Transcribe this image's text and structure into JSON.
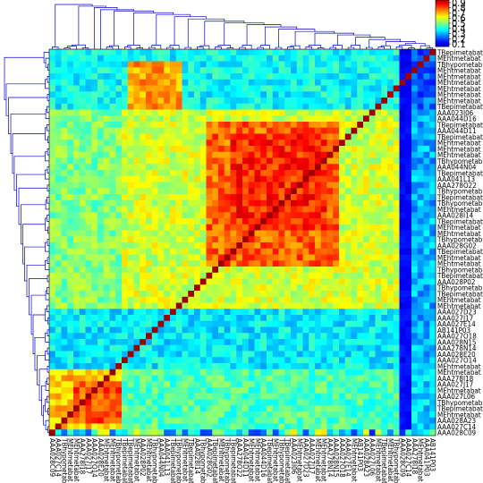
{
  "chart_data": {
    "type": "heatmap",
    "title": "",
    "xlabel": "",
    "ylabel": "",
    "colormap": [
      "#00008f",
      "#0000ff",
      "#0080ff",
      "#00ffff",
      "#80ff80",
      "#ffff00",
      "#ff8000",
      "#ff0000",
      "#800000"
    ],
    "dendrogram_color": "#0000cc",
    "colorbar": {
      "ticks": [
        0.1,
        0.2,
        0.3,
        0.4,
        0.5,
        0.6,
        0.7,
        0.8,
        0.9
      ],
      "range": [
        0.05,
        0.95
      ]
    },
    "row_labels": [
      "TBepimetabat",
      "MEhtmetabat",
      "TBhypometab",
      "MEhtmetabat",
      "MEhtmetabat",
      "MEhtmetabat",
      "MEhtmetabat",
      "MEhtmetabat",
      "MEhtmetabat",
      "TBepimetabat",
      "AAA023I06",
      "AAA044D16",
      "TBepimetabat",
      "AAA044D11",
      "TBepimetabat",
      "MEhtmetabat",
      "MEhtmetabat",
      "MEhtmetabat",
      "TBhypometab",
      "AAA044N04",
      "TBepimetabat",
      "AAA041L13",
      "AAA278O22",
      "TBhypometab",
      "TBepimetabat",
      "TBhypometab",
      "MEhtmetabat",
      "AAA028I14",
      "TBepimetabat",
      "MEhtmetabat",
      "MEhtmetabat",
      "TBhypometab",
      "AAA028G02",
      "TBepimetabat",
      "MEhtmetabat",
      "MEhtmetabat",
      "TBhypometab",
      "TBepimetabat",
      "AAA028P02",
      "TBhypometab",
      "TBepimetabat",
      "MEhtmetabat",
      "MEhtmetabat",
      "AAA027D23",
      "AAA027J17",
      "AAA027E14",
      "AB141P03",
      "AAA027O18",
      "AAA028N15",
      "AAA278N14",
      "AAA028E20",
      "AAA027O14",
      "MEhtmetabat",
      "MEhtmetabat",
      "AAA278I18",
      "AAA027J17",
      "MEhtmetabat",
      "AAA027L06",
      "TBhypometab",
      "TBepimetabat",
      "MEhtmetabat",
      "AAA028A23",
      "AAA027C14",
      "AAA028C09"
    ],
    "col_labels": [
      "AAA028C09",
      "AAA027C14",
      "TBhypometab",
      "MEhtmetabat",
      "MEhtmetabat",
      "AAA278I18",
      "AAA027J17",
      "AAA027O14",
      "AAA028E20",
      "MEhtmetabat",
      "MEhtmetabat",
      "TBhypometab",
      "TBepimetabat",
      "TBepimetabat",
      "MEhtmetabat",
      "AAA028P02",
      "MEhtmetabat",
      "TBhypometab",
      "AAA044N04",
      "AAA041L13",
      "TBepimetabat",
      "TBhypometab",
      "MEhtmetabat",
      "TBepimetabat",
      "AAA028I14",
      "TBhypometab",
      "AAA028G02",
      "TBepimetabat",
      "MEhtmetabat",
      "TBhypometab",
      "TBepimetabat",
      "AAA278O22",
      "AAA044D11",
      "MEhtmetabat",
      "MEhtmetabat",
      "AAA044D16",
      "TBepimetabat",
      "MEhtmetabat",
      "TBhypometab",
      "TBepimetabat",
      "AAA023I06",
      "MEhtmetabat",
      "AAA027D23",
      "AAA027J17",
      "MEhtmetabat",
      "MEhtmetabat",
      "AAA278N14",
      "AAA028N15",
      "AAA027O18",
      "AAA027E14",
      "MEhtmetabat",
      "AB141P03",
      "AAA028A23",
      "AAA027L06",
      "MEhtmetabat",
      "TBepimetabat",
      "MEhtmetabat",
      "TBhypometab",
      "AAA028C09",
      "AAA027C14",
      "AAA278I18",
      "MEhtmetabat",
      "AAA041P03",
      "AB141P03"
    ],
    "blocks": [
      {
        "rows": [
          0,
          10
        ],
        "cols": [
          0,
          58
        ],
        "value": 0.38
      },
      {
        "rows": [
          0,
          10
        ],
        "cols": [
          58,
          64
        ],
        "value": 0.22
      },
      {
        "rows": [
          2,
          10
        ],
        "cols": [
          13,
          22
        ],
        "value": 0.72
      },
      {
        "rows": [
          10,
          43
        ],
        "cols": [
          0,
          12
        ],
        "value": 0.5
      },
      {
        "rows": [
          10,
          43
        ],
        "cols": [
          12,
          58
        ],
        "value": 0.58
      },
      {
        "rows": [
          12,
          36
        ],
        "cols": [
          26,
          48
        ],
        "value": 0.78
      },
      {
        "rows": [
          14,
          30
        ],
        "cols": [
          30,
          46
        ],
        "value": 0.84
      },
      {
        "rows": [
          10,
          43
        ],
        "cols": [
          58,
          64
        ],
        "value": 0.3
      },
      {
        "rows": [
          43,
          53
        ],
        "cols": [
          0,
          58
        ],
        "value": 0.36
      },
      {
        "rows": [
          43,
          53
        ],
        "cols": [
          58,
          64
        ],
        "value": 0.3
      },
      {
        "rows": [
          53,
          64
        ],
        "cols": [
          0,
          12
        ],
        "value": 0.68
      },
      {
        "rows": [
          55,
          62
        ],
        "cols": [
          4,
          12
        ],
        "value": 0.8
      },
      {
        "rows": [
          53,
          64
        ],
        "cols": [
          12,
          58
        ],
        "value": 0.45
      },
      {
        "rows": [
          53,
          64
        ],
        "cols": [
          58,
          64
        ],
        "value": 0.34
      }
    ],
    "low_band_cols": [
      58,
      59
    ],
    "low_band_value": 0.12,
    "bottom_row_value": 0.16
  }
}
